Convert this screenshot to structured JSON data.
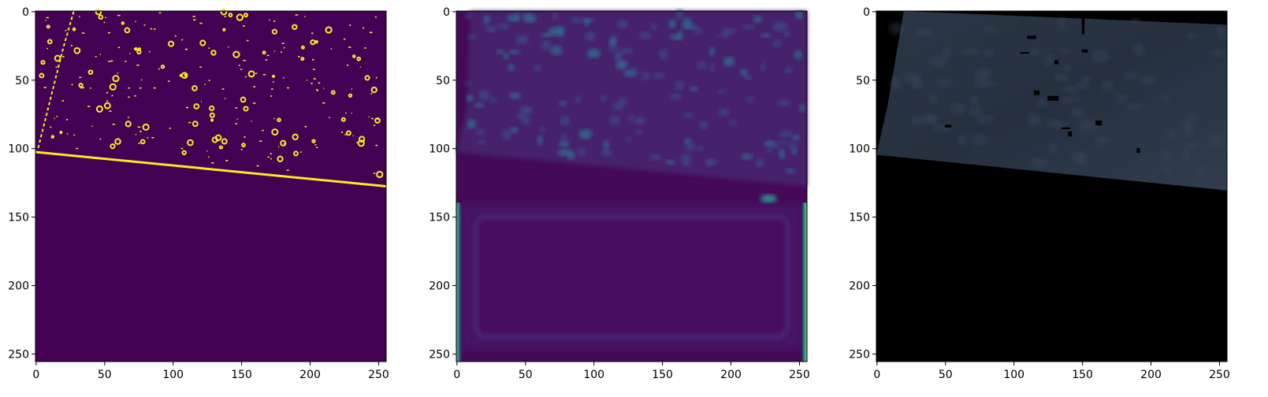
{
  "chart_data": [
    {
      "type": "heatmap",
      "colormap": "viridis",
      "description_kind": "binary edge mask",
      "xlim": [
        0,
        256
      ],
      "ylim": [
        256,
        0
      ],
      "x_ticks": [
        0,
        50,
        100,
        150,
        200,
        250
      ],
      "y_ticks": [
        0,
        50,
        100,
        150,
        200,
        250
      ],
      "background_color": "#440154",
      "highlight_color": "#fde725",
      "content_boundary_line": [
        [
          0,
          103
        ],
        [
          256,
          128
        ]
      ]
    },
    {
      "type": "heatmap",
      "colormap": "viridis",
      "description_kind": "soft response map",
      "xlim": [
        0,
        256
      ],
      "ylim": [
        256,
        0
      ],
      "x_ticks": [
        0,
        50,
        100,
        150,
        200,
        250
      ],
      "y_ticks": [
        0,
        50,
        100,
        150,
        200,
        250
      ],
      "background_color": "#440a57",
      "highlight_color": "#2a8c8c",
      "content_boundary_line": [
        [
          0,
          103
        ],
        [
          256,
          128
        ]
      ]
    },
    {
      "type": "heatmap",
      "colormap": "rgb",
      "description_kind": "masked photo",
      "xlim": [
        0,
        256
      ],
      "ylim": [
        256,
        0
      ],
      "x_ticks": [
        0,
        50,
        100,
        150,
        200,
        250
      ],
      "y_ticks": [
        0,
        50,
        100,
        150,
        200,
        250
      ],
      "background_color": "#000000",
      "highlight_color": "#2f3c4c",
      "content_boundary_line": [
        [
          0,
          105
        ],
        [
          256,
          131
        ]
      ]
    }
  ]
}
